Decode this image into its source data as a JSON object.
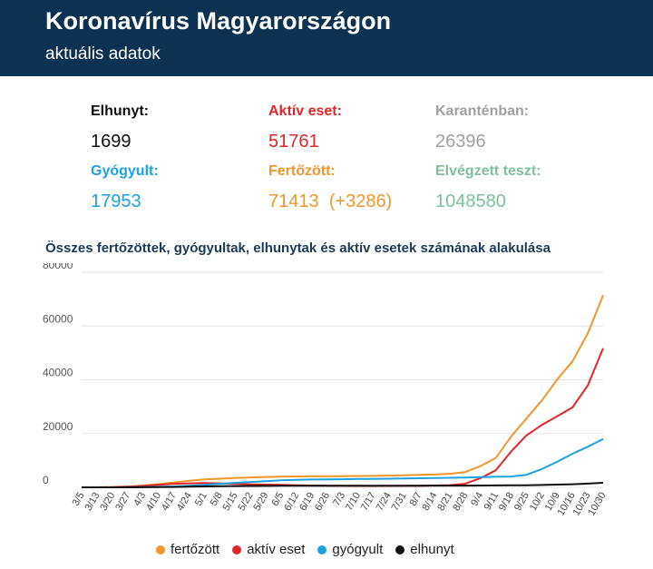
{
  "header": {
    "title": "Koronavírus Magyarországon",
    "subtitle": "aktuális adatok"
  },
  "stats": {
    "deceased": {
      "label": "Elhunyt:",
      "value": "1699",
      "color": "#111111"
    },
    "active": {
      "label": "Aktív eset:",
      "value": "51761",
      "color": "#e0262b"
    },
    "quarantine": {
      "label": "Karanténban:",
      "value": "26396",
      "color": "#a0a0a0"
    },
    "recovered": {
      "label": "Gyógyult:",
      "value": "17953",
      "color": "#1da1e0"
    },
    "infected": {
      "label": "Fertőzött:",
      "value": "71413  (+3286)",
      "color": "#f0962a"
    },
    "tests": {
      "label": "Elvégzett teszt:",
      "value": "1048580",
      "color": "#7fbf9e"
    }
  },
  "chart_data": {
    "type": "line",
    "title": "Összes fertőzöttek, gyógyultak, elhunytak és aktív esetek számának alakulása",
    "x": [
      "3/5",
      "3/13",
      "3/20",
      "3/27",
      "4/3",
      "4/10",
      "4/17",
      "4/24",
      "5/1",
      "5/8",
      "5/15",
      "5/22",
      "5/29",
      "6/5",
      "6/12",
      "6/19",
      "6/26",
      "7/3",
      "7/10",
      "7/17",
      "7/24",
      "7/31",
      "8/7",
      "8/14",
      "8/21",
      "8/28",
      "9/4",
      "9/11",
      "9/18",
      "9/25",
      "10/2",
      "10/9",
      "10/16",
      "10/23",
      "10/30"
    ],
    "ylim": [
      0,
      80000
    ],
    "yticks": [
      0,
      20000,
      40000,
      60000,
      80000
    ],
    "grid": true,
    "legend_position": "bottom",
    "series": [
      {
        "name": "fertőzött",
        "color": "#f0962a",
        "values": [
          2,
          13,
          85,
          300,
          678,
          1190,
          1834,
          2443,
          2942,
          3213,
          3473,
          3678,
          3856,
          3990,
          4066,
          4094,
          4130,
          4157,
          4230,
          4263,
          4339,
          4448,
          4621,
          4776,
          5038,
          5669,
          7892,
          10909,
          18866,
          25627,
          32298,
          40104,
          46835,
          57283,
          71413
        ]
      },
      {
        "name": "aktív eset",
        "color": "#e0262b",
        "values": [
          2,
          13,
          75,
          270,
          550,
          900,
          1300,
          1500,
          1600,
          1500,
          1300,
          1150,
          1000,
          900,
          780,
          680,
          620,
          560,
          540,
          520,
          540,
          570,
          620,
          660,
          800,
          1300,
          3400,
          6300,
          13300,
          19300,
          23200,
          26400,
          29700,
          37900,
          51761
        ]
      },
      {
        "name": "gyógyult",
        "color": "#1da1e0",
        "values": [
          0,
          0,
          5,
          20,
          80,
          200,
          350,
          600,
          900,
          1300,
          1700,
          2000,
          2300,
          2600,
          2800,
          2900,
          2950,
          3000,
          3100,
          3150,
          3200,
          3260,
          3360,
          3450,
          3550,
          3650,
          3780,
          3900,
          4020,
          4650,
          6800,
          9500,
          12500,
          15100,
          17953
        ]
      },
      {
        "name": "elhunyt",
        "color": "#111111",
        "values": [
          0,
          0,
          5,
          10,
          38,
          85,
          150,
          250,
          340,
          410,
          460,
          500,
          530,
          560,
          575,
          580,
          590,
          595,
          598,
          600,
          602,
          610,
          615,
          625,
          630,
          650,
          660,
          700,
          750,
          790,
          890,
          1000,
          1150,
          1380,
          1699
        ]
      }
    ]
  }
}
